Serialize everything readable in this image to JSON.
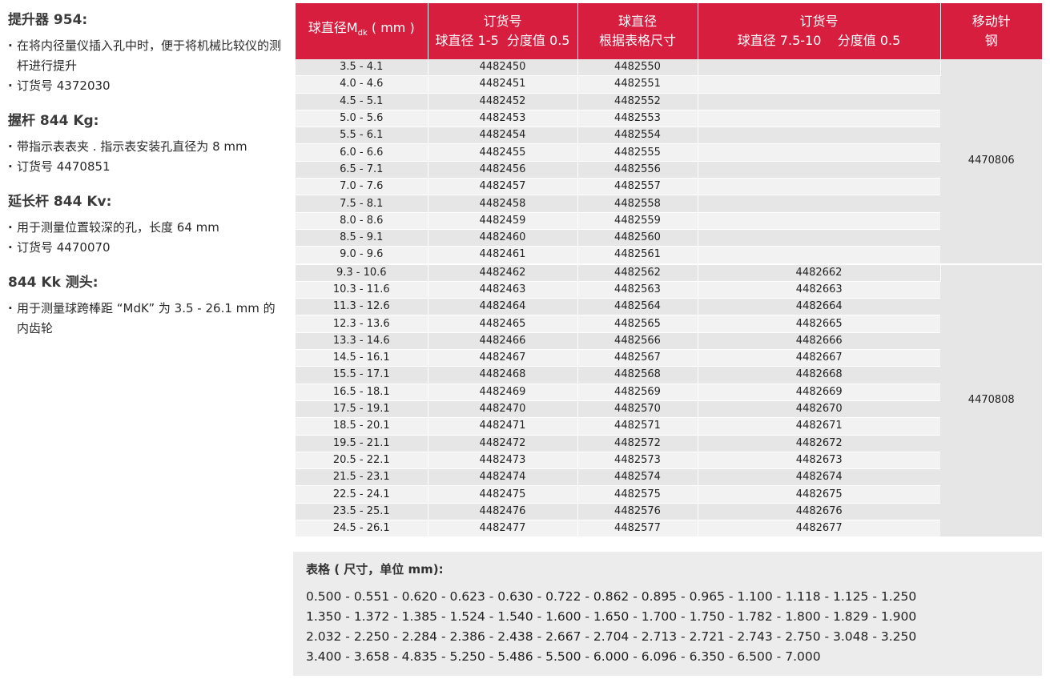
{
  "left": {
    "sections": [
      {
        "title": "提升器 954:",
        "bullets": [
          "在将内径量仪插入孔中时，便于将机械比较仪的测杆进行提升",
          "订货号 4372030"
        ]
      },
      {
        "title": "握杆 844 Kg:",
        "bullets": [
          "带指示表表夹 . 指示表安装孔直径为 8 mm",
          "订货号 4470851"
        ]
      },
      {
        "title": "延长杆 844 Kv:",
        "bullets": [
          "用于测量位置较深的孔，长度 64 mm",
          "订货号 4470070"
        ]
      },
      {
        "title": "844 Kk 测头:",
        "bullets": [
          "用于测量球跨棒距 “MdK” 为 3.5 - 26.1 mm 的内齿轮"
        ]
      }
    ]
  },
  "table": {
    "headers": {
      "col1_main": "球直径M",
      "col1_sub": "dk",
      "col1_unit": "( mm )",
      "col2_line1": "订货号",
      "col2_line2": "球直径 1-5  分度值 0.5",
      "col3_line1": "球直径",
      "col3_line2": "根据表格尺寸",
      "col4_line1": "订货号",
      "col4_line2": "球直径 7.5-10    分度值 0.5",
      "col5_line1": "移动针",
      "col5_line2": "钢"
    },
    "rows": [
      [
        "3.5 - 4.1",
        "4482450",
        "4482550",
        ""
      ],
      [
        "4.0 - 4.6",
        "4482451",
        "4482551",
        ""
      ],
      [
        "4.5 - 5.1",
        "4482452",
        "4482552",
        ""
      ],
      [
        "5.0 - 5.6",
        "4482453",
        "4482553",
        ""
      ],
      [
        "5.5 - 6.1",
        "4482454",
        "4482554",
        ""
      ],
      [
        "6.0 - 6.6",
        "4482455",
        "4482555",
        ""
      ],
      [
        "6.5 - 7.1",
        "4482456",
        "4482556",
        ""
      ],
      [
        "7.0 - 7.6",
        "4482457",
        "4482557",
        ""
      ],
      [
        "7.5 - 8.1",
        "4482458",
        "4482558",
        ""
      ],
      [
        "8.0 - 8.6",
        "4482459",
        "4482559",
        ""
      ],
      [
        "8.5 - 9.1",
        "4482460",
        "4482560",
        ""
      ],
      [
        "9.0 - 9.6",
        "4482461",
        "4482561",
        ""
      ],
      [
        "9.3 - 10.6",
        "4482462",
        "4482562",
        "4482662"
      ],
      [
        "10.3 - 11.6",
        "4482463",
        "4482563",
        "4482663"
      ],
      [
        "11.3 - 12.6",
        "4482464",
        "4482564",
        "4482664"
      ],
      [
        "12.3 - 13.6",
        "4482465",
        "4482565",
        "4482665"
      ],
      [
        "13.3 - 14.6",
        "4482466",
        "4482566",
        "4482666"
      ],
      [
        "14.5 - 16.1",
        "4482467",
        "4482567",
        "4482667"
      ],
      [
        "15.5 - 17.1",
        "4482468",
        "4482568",
        "4482668"
      ],
      [
        "16.5 - 18.1",
        "4482469",
        "4482569",
        "4482669"
      ],
      [
        "17.5 - 19.1",
        "4482470",
        "4482570",
        "4482670"
      ],
      [
        "18.5 - 20.1",
        "4482471",
        "4482571",
        "4482671"
      ],
      [
        "19.5 - 21.1",
        "4482472",
        "4482572",
        "4482672"
      ],
      [
        "20.5 - 22.1",
        "4482473",
        "4482573",
        "4482673"
      ],
      [
        "21.5 - 23.1",
        "4482474",
        "4482574",
        "4482674"
      ],
      [
        "22.5 - 24.1",
        "4482475",
        "4482575",
        "4482675"
      ],
      [
        "23.5 - 25.1",
        "4482476",
        "4482576",
        "4482676"
      ],
      [
        "24.5 - 26.1",
        "4482477",
        "4482577",
        "4482677"
      ]
    ],
    "steel_groups": [
      {
        "value": "4470806",
        "rows": 12
      },
      {
        "value": "4470808",
        "rows": 16
      }
    ]
  },
  "bottom": {
    "title": "表格 ( 尺寸，单位 mm):",
    "lines": [
      "0.500 - 0.551 - 0.620 - 0.623 - 0.630 - 0.722 - 0.862 - 0.895 - 0.965 - 1.100 - 1.118 - 1.125 - 1.250",
      "1.350 - 1.372 - 1.385 - 1.524 - 1.540 - 1.600 - 1.650 - 1.700 - 1.750 - 1.782 - 1.800 - 1.829 - 1.900",
      "2.032 - 2.250 - 2.284 - 2.386 - 2.438 - 2.667 - 2.704 - 2.713 - 2.721 - 2.743 - 2.750 - 3.048 - 3.250",
      "3.400 - 3.658 - 4.835 - 5.250 - 5.486 - 5.500 - 6.000 - 6.096 - 6.350 - 6.500 - 7.000"
    ]
  },
  "colors": {
    "header_red": "#d71e3f",
    "row_dark": "#e6e6e7",
    "row_light": "#f2f2f3",
    "bottom_bg": "#ececed"
  }
}
